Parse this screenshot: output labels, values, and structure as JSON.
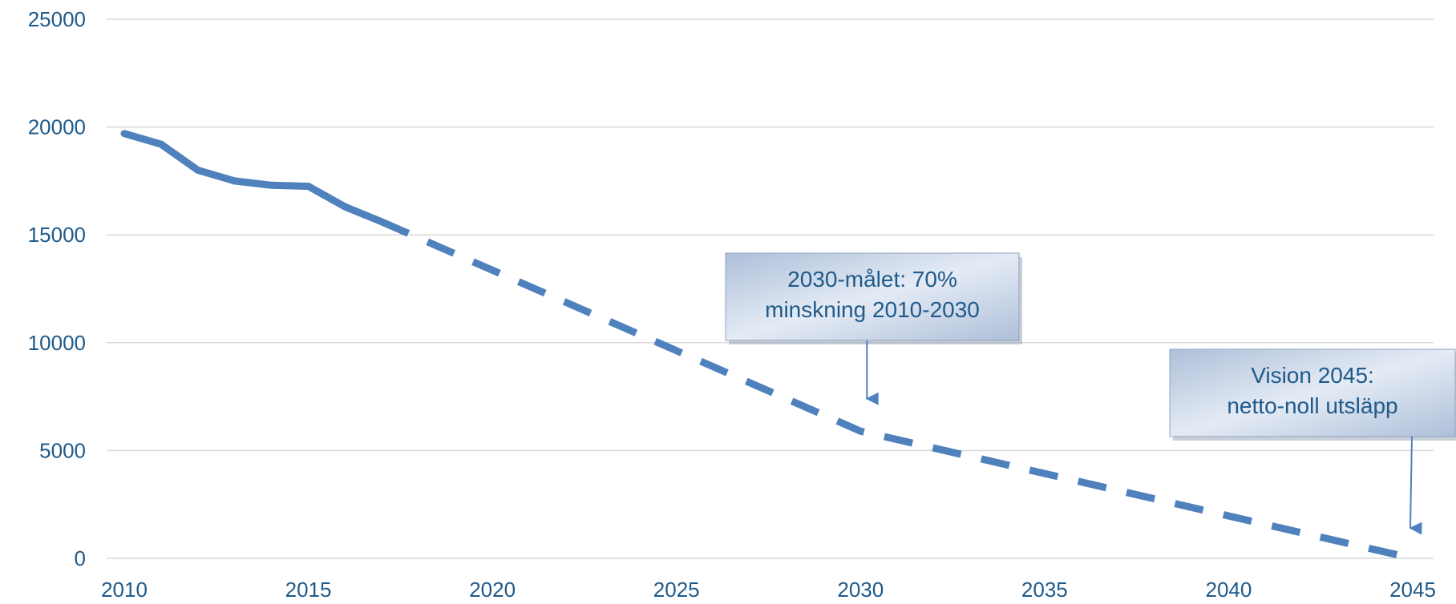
{
  "chart_data": {
    "type": "line",
    "title": "",
    "xlabel": "",
    "ylabel": "",
    "xlim": [
      2010,
      2045
    ],
    "ylim": [
      0,
      25000
    ],
    "x_ticks": [
      "2010",
      "2015",
      "2020",
      "2025",
      "2030",
      "2035",
      "2040",
      "2045"
    ],
    "y_ticks": [
      "0",
      "5000",
      "10000",
      "15000",
      "20000",
      "25000"
    ],
    "grid": true,
    "legend": "none",
    "series": [
      {
        "style": "solid",
        "color": "#4f81bd",
        "x": [
          2010,
          2011,
          2012,
          2013,
          2014,
          2015,
          2016,
          2017
        ],
        "y": [
          19700,
          19200,
          18000,
          17500,
          17300,
          17250,
          16300,
          15600
        ]
      },
      {
        "style": "dashed",
        "color": "#4f81bd",
        "x": [
          2017,
          2030,
          2045
        ],
        "y": [
          15600,
          5900,
          0
        ]
      }
    ],
    "annotations": [
      {
        "lines": [
          "2030-målet: 70%",
          "minskning 2010-2030"
        ],
        "points_to_x": 2030,
        "points_to_y": 7400
      },
      {
        "lines": [
          "Vision 2045:",
          "netto-noll utsläpp"
        ],
        "points_to_x": 2045,
        "points_to_y": 1400
      }
    ]
  }
}
